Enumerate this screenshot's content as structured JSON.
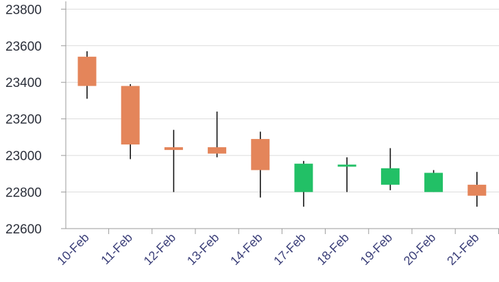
{
  "chart_data": {
    "type": "candlestick",
    "title": "",
    "xlabel": "",
    "ylabel": "",
    "ylim": [
      22600,
      23850
    ],
    "y_ticks": [
      22600,
      22800,
      23000,
      23200,
      23400,
      23600,
      23800
    ],
    "y_tick_labels": [
      "22600",
      "22800",
      "23000",
      "23200",
      "23400",
      "23600",
      "23800"
    ],
    "grid": true,
    "legend": "none",
    "categories": [
      "10-Feb",
      "11-Feb",
      "12-Feb",
      "13-Feb",
      "14-Feb",
      "17-Feb",
      "18-Feb",
      "19-Feb",
      "20-Feb",
      "21-Feb"
    ],
    "open": [
      23540,
      23380,
      23045,
      23045,
      23090,
      22800,
      22940,
      22840,
      22800,
      22840
    ],
    "high": [
      23570,
      23390,
      23140,
      23240,
      23130,
      22970,
      22990,
      23040,
      22920,
      22910
    ],
    "low": [
      23310,
      22980,
      22800,
      22990,
      22770,
      22720,
      22800,
      22810,
      22800,
      22720
    ],
    "close": [
      23380,
      23060,
      23030,
      23010,
      22920,
      22955,
      22950,
      22930,
      22905,
      22780
    ],
    "colors": {
      "up": "#22c066",
      "down": "#e4855a",
      "wick": "#111111",
      "grid": "#dcdcdc",
      "axis": "#9a9a9a"
    }
  }
}
